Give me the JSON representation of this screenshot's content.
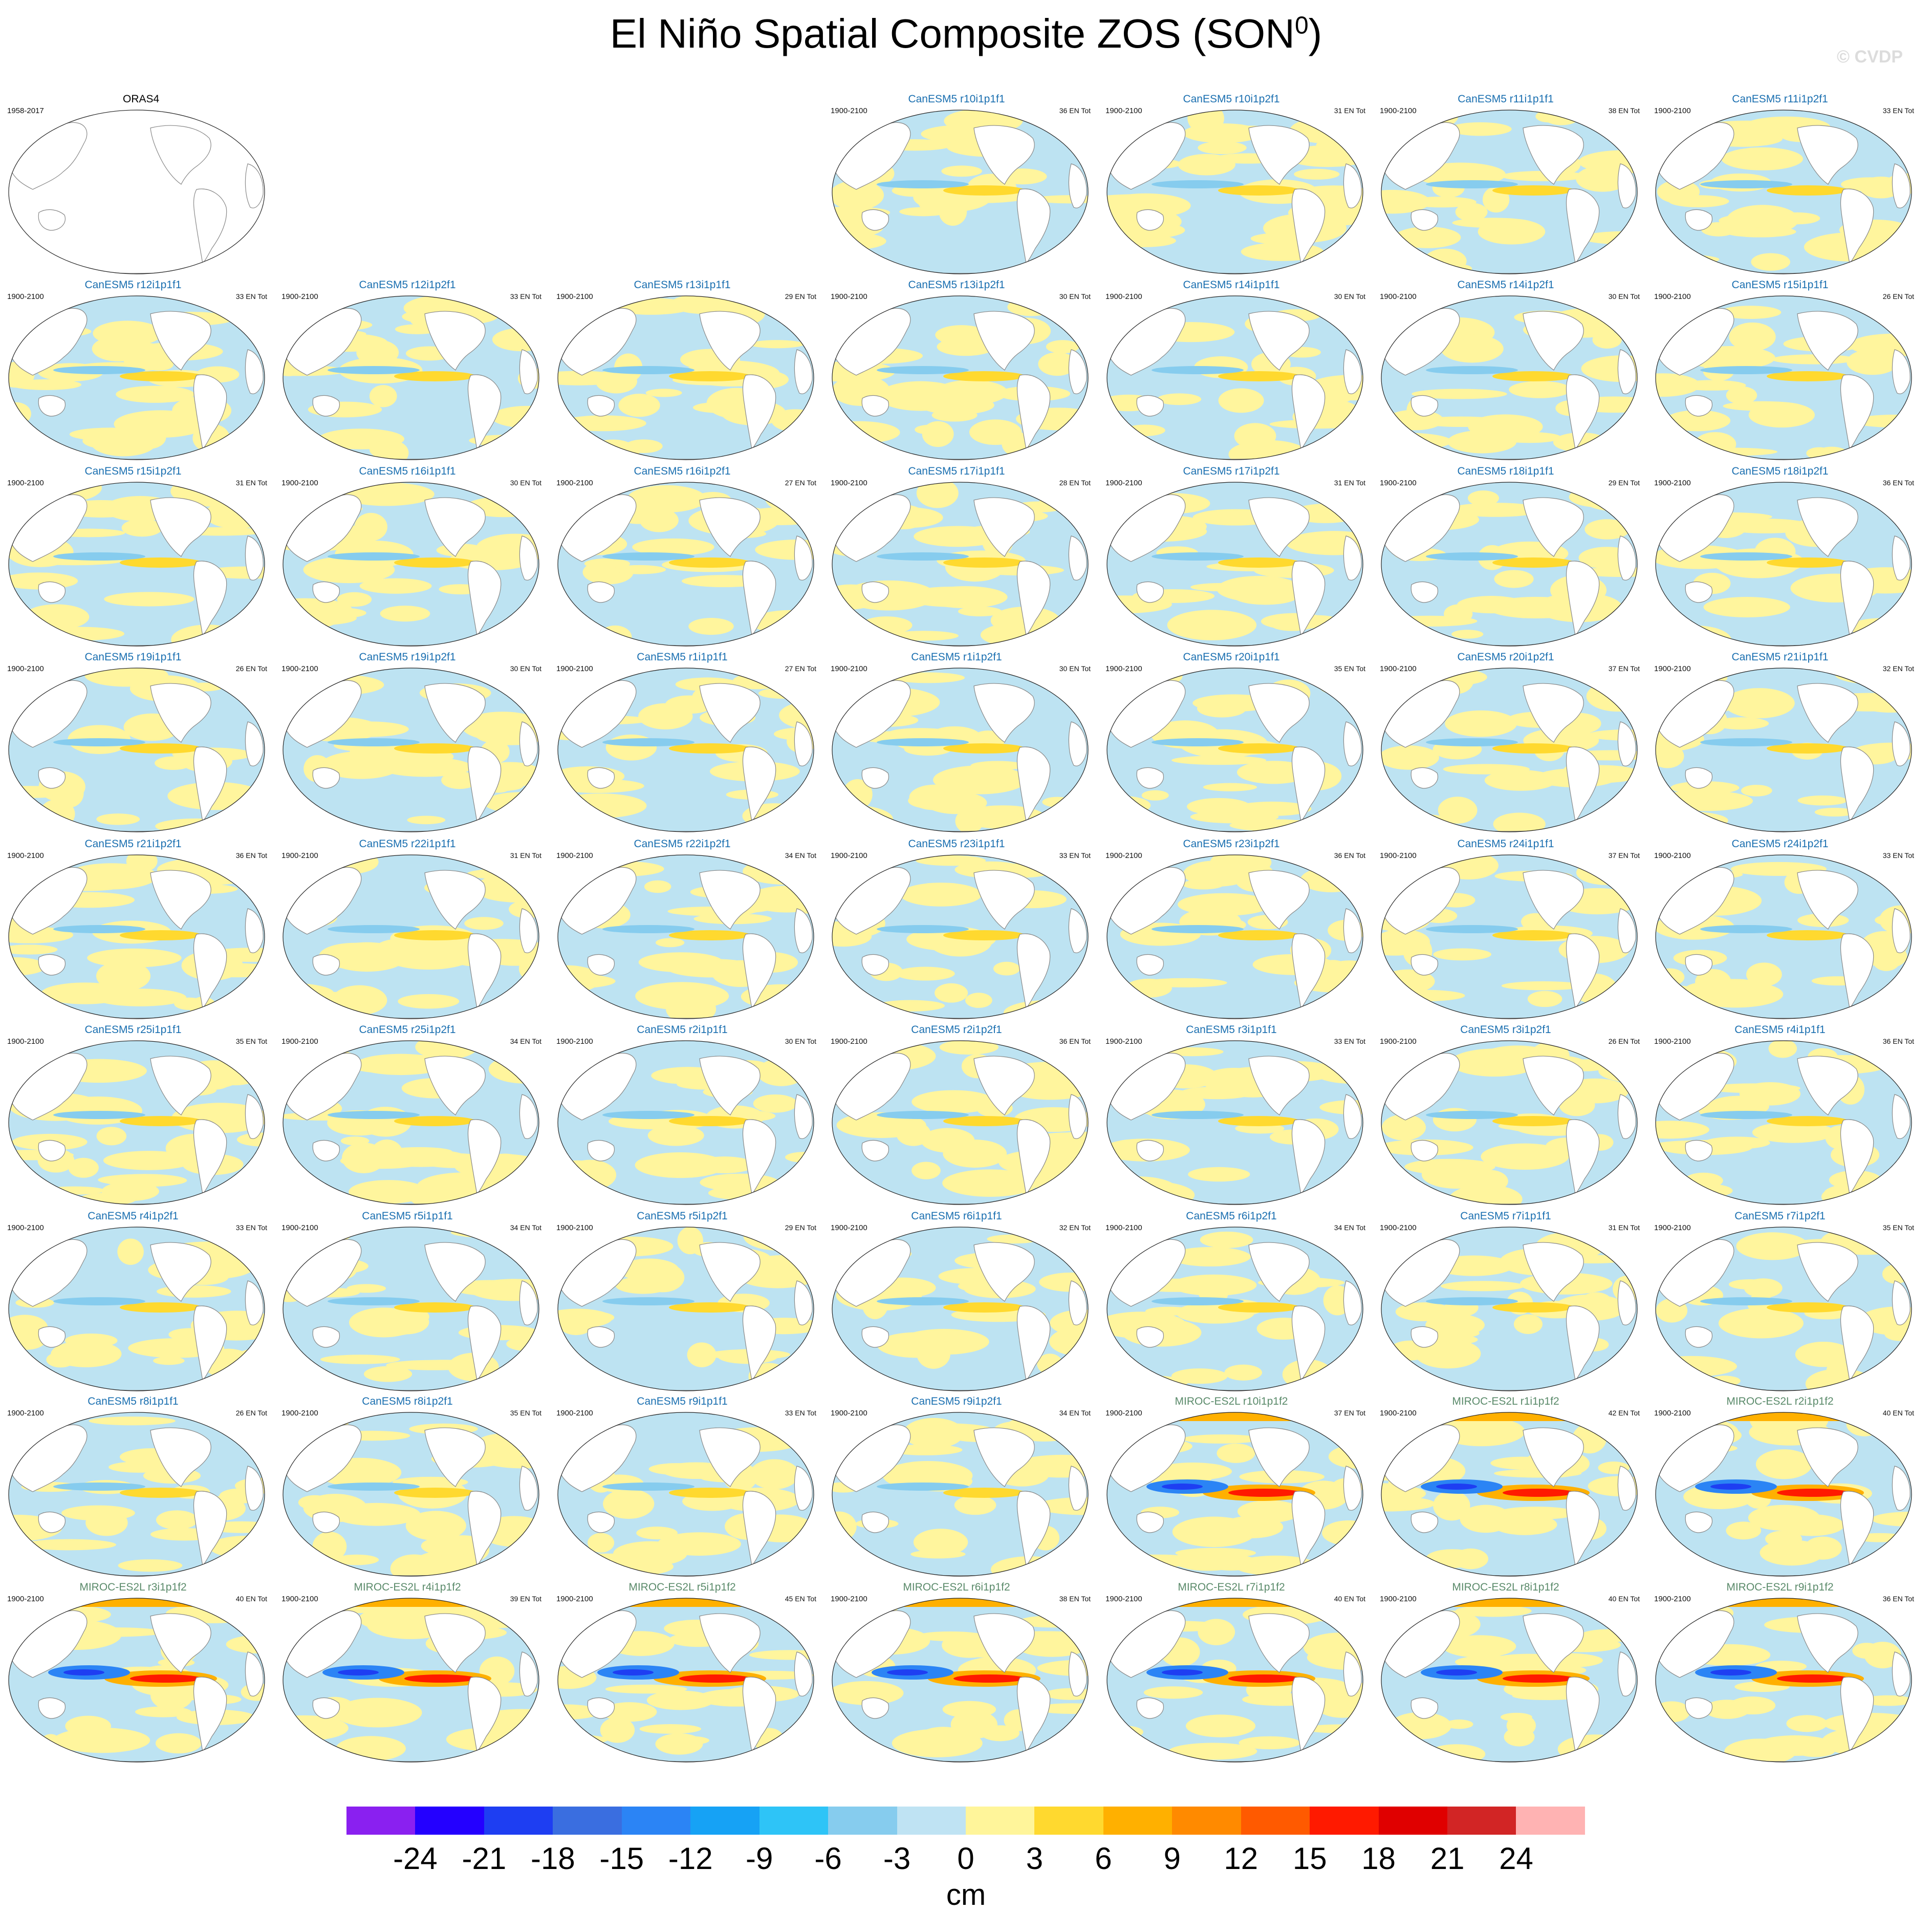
{
  "title": {
    "main": "El Niño Spatial Composite ZOS (SON",
    "sup": "0",
    "close": ")"
  },
  "credit": "© CVDP",
  "colors": {
    "canesm_title": "#1a6fb0",
    "miroc_title": "#5a8a6a",
    "ocean_neg": "#bde3f2",
    "ocean_pos": "#fff59d",
    "land": "#ffffff"
  },
  "panels": [
    {
      "model": "ORAS4",
      "years": "1958-2017",
      "count": "",
      "style": "obs"
    },
    {
      "model": "CanESM5 r10i1p1f1",
      "years": "1900-2100",
      "count": "36 EN Tot",
      "style": "canesm"
    },
    {
      "model": "CanESM5 r10i1p2f1",
      "years": "1900-2100",
      "count": "31 EN Tot",
      "style": "canesm"
    },
    {
      "model": "CanESM5 r11i1p1f1",
      "years": "1900-2100",
      "count": "38 EN Tot",
      "style": "canesm"
    },
    {
      "model": "CanESM5 r11i1p2f1",
      "years": "1900-2100",
      "count": "33 EN Tot",
      "style": "canesm"
    },
    {
      "model": "CanESM5 r12i1p1f1",
      "years": "1900-2100",
      "count": "33 EN Tot",
      "style": "canesm"
    },
    {
      "model": "CanESM5 r12i1p2f1",
      "years": "1900-2100",
      "count": "33 EN Tot",
      "style": "canesm"
    },
    {
      "model": "CanESM5 r13i1p1f1",
      "years": "1900-2100",
      "count": "29 EN Tot",
      "style": "canesm"
    },
    {
      "model": "CanESM5 r13i1p2f1",
      "years": "1900-2100",
      "count": "30 EN Tot",
      "style": "canesm"
    },
    {
      "model": "CanESM5 r14i1p1f1",
      "years": "1900-2100",
      "count": "30 EN Tot",
      "style": "canesm"
    },
    {
      "model": "CanESM5 r14i1p2f1",
      "years": "1900-2100",
      "count": "30 EN Tot",
      "style": "canesm"
    },
    {
      "model": "CanESM5 r15i1p1f1",
      "years": "1900-2100",
      "count": "26 EN Tot",
      "style": "canesm"
    },
    {
      "model": "CanESM5 r15i1p2f1",
      "years": "1900-2100",
      "count": "31 EN Tot",
      "style": "canesm"
    },
    {
      "model": "CanESM5 r16i1p1f1",
      "years": "1900-2100",
      "count": "30 EN Tot",
      "style": "canesm"
    },
    {
      "model": "CanESM5 r16i1p2f1",
      "years": "1900-2100",
      "count": "27 EN Tot",
      "style": "canesm"
    },
    {
      "model": "CanESM5 r17i1p1f1",
      "years": "1900-2100",
      "count": "28 EN Tot",
      "style": "canesm"
    },
    {
      "model": "CanESM5 r17i1p2f1",
      "years": "1900-2100",
      "count": "31 EN Tot",
      "style": "canesm"
    },
    {
      "model": "CanESM5 r18i1p1f1",
      "years": "1900-2100",
      "count": "29 EN Tot",
      "style": "canesm"
    },
    {
      "model": "CanESM5 r18i1p2f1",
      "years": "1900-2100",
      "count": "36 EN Tot",
      "style": "canesm"
    },
    {
      "model": "CanESM5 r19i1p1f1",
      "years": "1900-2100",
      "count": "26 EN Tot",
      "style": "canesm"
    },
    {
      "model": "CanESM5 r19i1p2f1",
      "years": "1900-2100",
      "count": "30 EN Tot",
      "style": "canesm"
    },
    {
      "model": "CanESM5 r1i1p1f1",
      "years": "1900-2100",
      "count": "27 EN Tot",
      "style": "canesm"
    },
    {
      "model": "CanESM5 r1i1p2f1",
      "years": "1900-2100",
      "count": "30 EN Tot",
      "style": "canesm"
    },
    {
      "model": "CanESM5 r20i1p1f1",
      "years": "1900-2100",
      "count": "35 EN Tot",
      "style": "canesm"
    },
    {
      "model": "CanESM5 r20i1p2f1",
      "years": "1900-2100",
      "count": "37 EN Tot",
      "style": "canesm"
    },
    {
      "model": "CanESM5 r21i1p1f1",
      "years": "1900-2100",
      "count": "32 EN Tot",
      "style": "canesm"
    },
    {
      "model": "CanESM5 r21i1p2f1",
      "years": "1900-2100",
      "count": "36 EN Tot",
      "style": "canesm"
    },
    {
      "model": "CanESM5 r22i1p1f1",
      "years": "1900-2100",
      "count": "31 EN Tot",
      "style": "canesm"
    },
    {
      "model": "CanESM5 r22i1p2f1",
      "years": "1900-2100",
      "count": "34 EN Tot",
      "style": "canesm"
    },
    {
      "model": "CanESM5 r23i1p1f1",
      "years": "1900-2100",
      "count": "33 EN Tot",
      "style": "canesm"
    },
    {
      "model": "CanESM5 r23i1p2f1",
      "years": "1900-2100",
      "count": "36 EN Tot",
      "style": "canesm"
    },
    {
      "model": "CanESM5 r24i1p1f1",
      "years": "1900-2100",
      "count": "37 EN Tot",
      "style": "canesm"
    },
    {
      "model": "CanESM5 r24i1p2f1",
      "years": "1900-2100",
      "count": "33 EN Tot",
      "style": "canesm"
    },
    {
      "model": "CanESM5 r25i1p1f1",
      "years": "1900-2100",
      "count": "35 EN Tot",
      "style": "canesm"
    },
    {
      "model": "CanESM5 r25i1p2f1",
      "years": "1900-2100",
      "count": "34 EN Tot",
      "style": "canesm"
    },
    {
      "model": "CanESM5 r2i1p1f1",
      "years": "1900-2100",
      "count": "30 EN Tot",
      "style": "canesm"
    },
    {
      "model": "CanESM5 r2i1p2f1",
      "years": "1900-2100",
      "count": "36 EN Tot",
      "style": "canesm"
    },
    {
      "model": "CanESM5 r3i1p1f1",
      "years": "1900-2100",
      "count": "33 EN Tot",
      "style": "canesm"
    },
    {
      "model": "CanESM5 r3i1p2f1",
      "years": "1900-2100",
      "count": "26 EN Tot",
      "style": "canesm"
    },
    {
      "model": "CanESM5 r4i1p1f1",
      "years": "1900-2100",
      "count": "36 EN Tot",
      "style": "canesm"
    },
    {
      "model": "CanESM5 r4i1p2f1",
      "years": "1900-2100",
      "count": "33 EN Tot",
      "style": "canesm"
    },
    {
      "model": "CanESM5 r5i1p1f1",
      "years": "1900-2100",
      "count": "34 EN Tot",
      "style": "canesm"
    },
    {
      "model": "CanESM5 r5i1p2f1",
      "years": "1900-2100",
      "count": "29 EN Tot",
      "style": "canesm"
    },
    {
      "model": "CanESM5 r6i1p1f1",
      "years": "1900-2100",
      "count": "32 EN Tot",
      "style": "canesm"
    },
    {
      "model": "CanESM5 r6i1p2f1",
      "years": "1900-2100",
      "count": "34 EN Tot",
      "style": "canesm"
    },
    {
      "model": "CanESM5 r7i1p1f1",
      "years": "1900-2100",
      "count": "31 EN Tot",
      "style": "canesm"
    },
    {
      "model": "CanESM5 r7i1p2f1",
      "years": "1900-2100",
      "count": "35 EN Tot",
      "style": "canesm"
    },
    {
      "model": "CanESM5 r8i1p1f1",
      "years": "1900-2100",
      "count": "26 EN Tot",
      "style": "canesm"
    },
    {
      "model": "CanESM5 r8i1p2f1",
      "years": "1900-2100",
      "count": "35 EN Tot",
      "style": "canesm"
    },
    {
      "model": "CanESM5 r9i1p1f1",
      "years": "1900-2100",
      "count": "33 EN Tot",
      "style": "canesm"
    },
    {
      "model": "CanESM5 r9i1p2f1",
      "years": "1900-2100",
      "count": "34 EN Tot",
      "style": "canesm"
    },
    {
      "model": "MIROC-ES2L r10i1p1f2",
      "years": "1900-2100",
      "count": "37 EN Tot",
      "style": "miroc"
    },
    {
      "model": "MIROC-ES2L r1i1p1f2",
      "years": "1900-2100",
      "count": "42 EN Tot",
      "style": "miroc"
    },
    {
      "model": "MIROC-ES2L r2i1p1f2",
      "years": "1900-2100",
      "count": "40 EN Tot",
      "style": "miroc"
    },
    {
      "model": "MIROC-ES2L r3i1p1f2",
      "years": "1900-2100",
      "count": "40 EN Tot",
      "style": "miroc"
    },
    {
      "model": "MIROC-ES2L r4i1p1f2",
      "years": "1900-2100",
      "count": "39 EN Tot",
      "style": "miroc"
    },
    {
      "model": "MIROC-ES2L r5i1p1f2",
      "years": "1900-2100",
      "count": "45 EN Tot",
      "style": "miroc"
    },
    {
      "model": "MIROC-ES2L r6i1p1f2",
      "years": "1900-2100",
      "count": "38 EN Tot",
      "style": "miroc"
    },
    {
      "model": "MIROC-ES2L r7i1p1f2",
      "years": "1900-2100",
      "count": "40 EN Tot",
      "style": "miroc"
    },
    {
      "model": "MIROC-ES2L r8i1p1f2",
      "years": "1900-2100",
      "count": "40 EN Tot",
      "style": "miroc"
    },
    {
      "model": "MIROC-ES2L r9i1p1f2",
      "years": "1900-2100",
      "count": "36 EN Tot",
      "style": "miroc"
    }
  ],
  "colorbar": {
    "colors": [
      "#8a20f0",
      "#2400ff",
      "#1e3ef2",
      "#3a6ee0",
      "#2b84f5",
      "#16a2f5",
      "#2ec4f7",
      "#86ccee",
      "#bfe3f3",
      "#fff59a",
      "#ffd92f",
      "#ffb000",
      "#ff8a00",
      "#ff5a00",
      "#ff1a00",
      "#e00000",
      "#d22525",
      "#ffb3b3"
    ],
    "labels": [
      "-24",
      "-21",
      "-18",
      "-15",
      "-12",
      "-9",
      "-6",
      "-3",
      "0",
      "3",
      "6",
      "9",
      "12",
      "15",
      "18",
      "21",
      "24"
    ],
    "units": "cm"
  }
}
